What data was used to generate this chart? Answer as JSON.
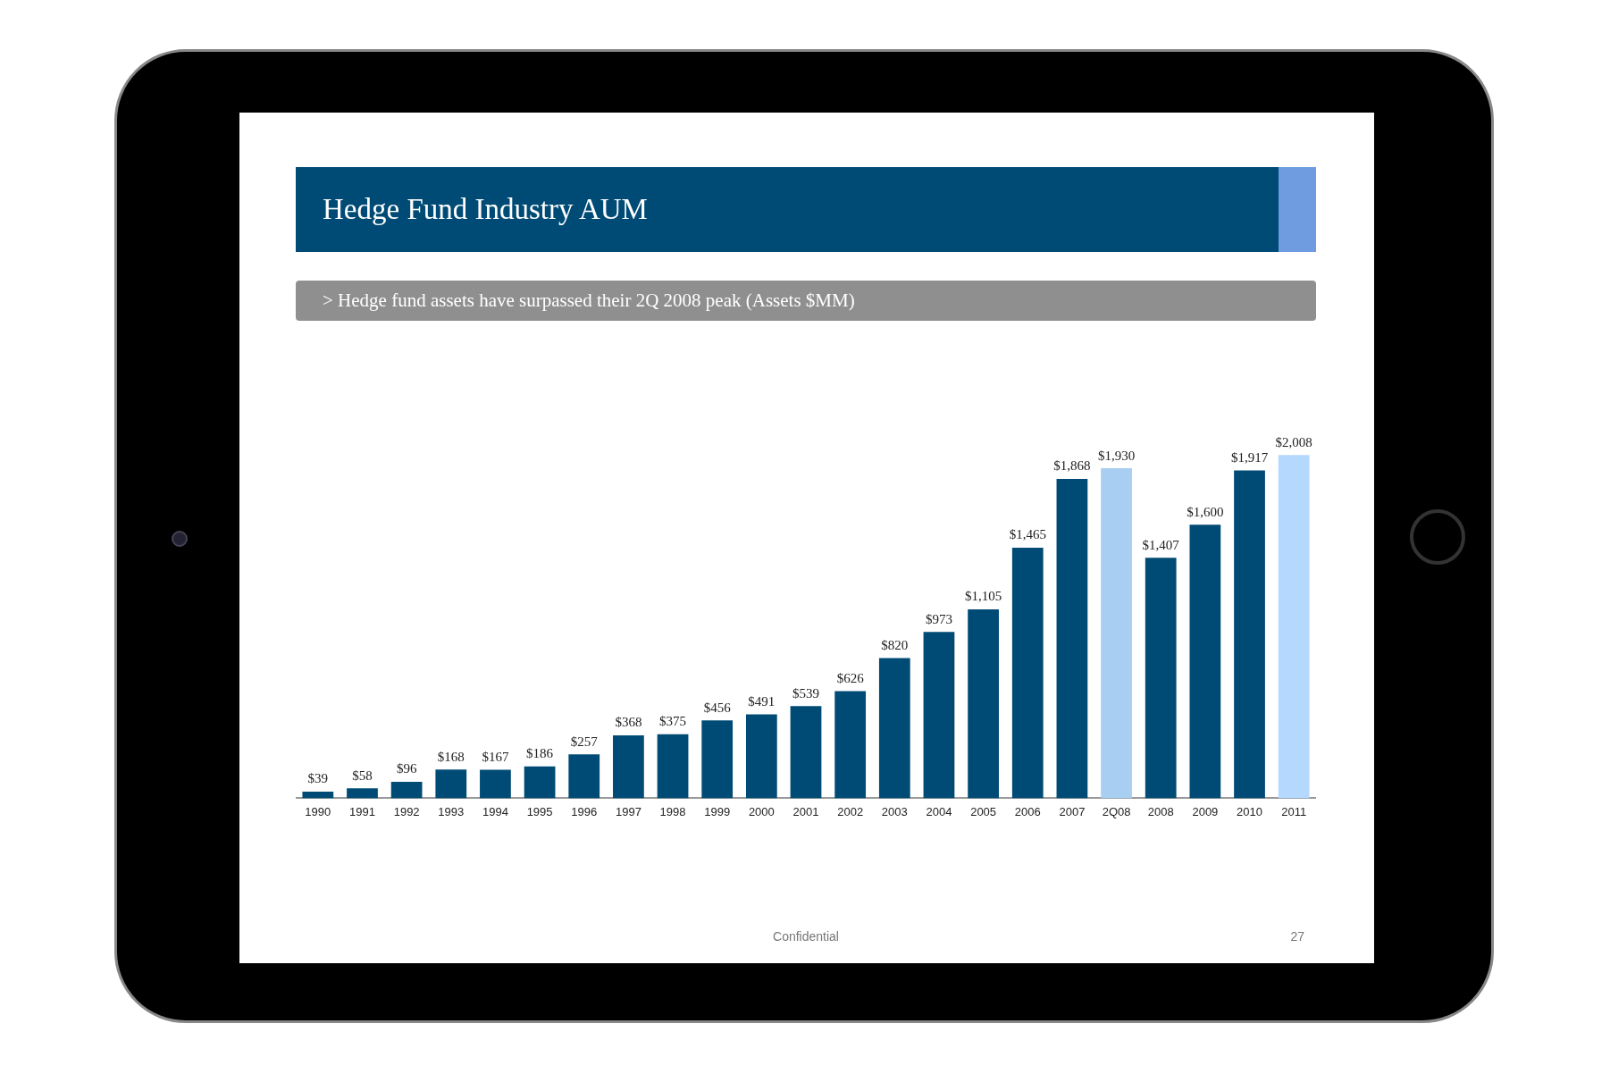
{
  "chart_data": {
    "type": "bar",
    "title": "Hedge Fund Industry AUM",
    "subtitle": "> Hedge fund assets have surpassed their 2Q 2008 peak (Assets $MM)",
    "categories": [
      "1990",
      "1991",
      "1992",
      "1993",
      "1994",
      "1995",
      "1996",
      "1997",
      "1998",
      "1999",
      "2000",
      "2001",
      "2002",
      "2003",
      "2004",
      "2005",
      "2006",
      "2007",
      "2Q08",
      "2008",
      "2009",
      "2010",
      "2011"
    ],
    "values": [
      39,
      58,
      96,
      168,
      167,
      186,
      257,
      368,
      375,
      456,
      491,
      539,
      626,
      820,
      973,
      1105,
      1465,
      1868,
      1930,
      1407,
      1600,
      1917,
      2008
    ],
    "value_labels": [
      "$39",
      "$58",
      "$96",
      "$168",
      "$167",
      "$186",
      "$257",
      "$368",
      "$375",
      "$456",
      "$491",
      "$539",
      "$626",
      "$820",
      "$973",
      "$1,105",
      "$1,465",
      "$1,868",
      "$1,930",
      "$1,407",
      "$1,600",
      "$1,917",
      "$2,008"
    ],
    "colors": [
      "#004b75",
      "#004b75",
      "#004b75",
      "#004b75",
      "#004b75",
      "#004b75",
      "#004b75",
      "#004b75",
      "#004b75",
      "#004b75",
      "#004b75",
      "#004b75",
      "#004b75",
      "#004b75",
      "#004b75",
      "#004b75",
      "#004b75",
      "#004b75",
      "#a8cff2",
      "#004b75",
      "#004b75",
      "#004b75",
      "#b5d8ff"
    ],
    "annotations": [
      "Confidential",
      "27"
    ],
    "grid": false,
    "legend": false
  }
}
